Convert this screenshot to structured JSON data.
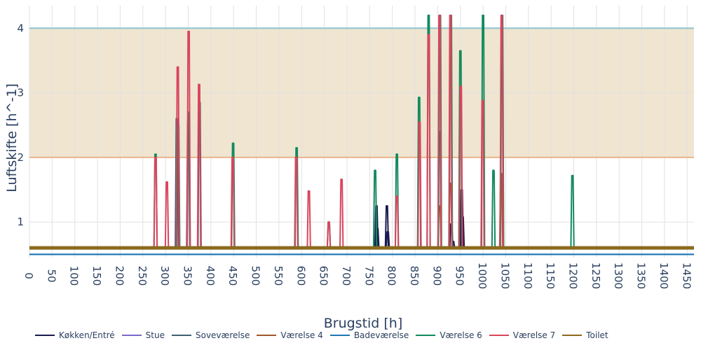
{
  "chart_data": {
    "type": "line",
    "title": "",
    "xlabel": "Brugstid [h]",
    "ylabel": "Luftskifte [h^-1]",
    "xlim": [
      0,
      1465
    ],
    "ylim": [
      0.45,
      4.35
    ],
    "x_ticks": [
      0,
      50,
      100,
      150,
      200,
      250,
      300,
      350,
      400,
      450,
      500,
      550,
      600,
      650,
      700,
      750,
      800,
      850,
      900,
      950,
      1000,
      1050,
      1100,
      1150,
      1200,
      1250,
      1300,
      1350,
      1400,
      1450
    ],
    "x_tick_labels": [
      "0",
      "50",
      "100",
      "150",
      "200",
      "250",
      "300",
      "350",
      "400",
      "450",
      "500",
      "550",
      "600",
      "650",
      "700",
      "750",
      "800",
      "850",
      "900",
      "950",
      "1000",
      "1050",
      "1100",
      "1150",
      "1200",
      "1250",
      "1300",
      "1350",
      "1400",
      "1450"
    ],
    "y_ticks": [
      1,
      2,
      3,
      4
    ],
    "y_tick_labels": [
      "1",
      "2",
      "3",
      "4"
    ],
    "grid": true,
    "legend_position": "bottom",
    "reference_band": {
      "from": 2,
      "to": 4,
      "color": "#efe5d1"
    },
    "reference_lines": [
      {
        "y": 4,
        "color": "#8ec5cf"
      },
      {
        "y": 2,
        "color": "#ebb489"
      },
      {
        "y": 0.5,
        "color": "#1f77b4"
      }
    ],
    "baseline": 0.6,
    "series": [
      {
        "name": "Køkken/Entré",
        "color": "#1b1b50",
        "peaks": [
          [
            765,
            1.25
          ],
          [
            767,
            0.9
          ],
          [
            788,
            1.25
          ],
          [
            790,
            0.85
          ],
          [
            930,
            0.97
          ],
          [
            934,
            0.7
          ],
          [
            953,
            1.5
          ],
          [
            955,
            1.08
          ]
        ]
      },
      {
        "name": "Stue",
        "color": "#7b68c8",
        "peaks": []
      },
      {
        "name": "Soveværelse",
        "color": "#3f5e72",
        "peaks": [
          [
            325,
            2.6
          ],
          [
            350,
            2.55
          ],
          [
            375,
            2.85
          ],
          [
            904,
            2.4
          ]
        ]
      },
      {
        "name": "Værelse 4",
        "color": "#a0562a",
        "peaks": [
          [
            928,
            1.6
          ],
          [
            904,
            1.25
          ],
          [
            1040,
            1.75
          ]
        ]
      },
      {
        "name": "Badeværelse",
        "color": "#1f77b4",
        "peaks": []
      },
      {
        "name": "Værelse 6",
        "color": "#138a5e",
        "peaks": [
          [
            278,
            2.05
          ],
          [
            328,
            2.5
          ],
          [
            351,
            2.7
          ],
          [
            449,
            2.22
          ],
          [
            589,
            2.15
          ],
          [
            660,
            1.0
          ],
          [
            762,
            1.8
          ],
          [
            810,
            2.05
          ],
          [
            859,
            2.93
          ],
          [
            880,
            4.2
          ],
          [
            905,
            4.2
          ],
          [
            929,
            4.2
          ],
          [
            950,
            3.65
          ],
          [
            1000,
            4.2
          ],
          [
            1023,
            1.8
          ],
          [
            1042,
            4.2
          ],
          [
            1197,
            1.72
          ]
        ]
      },
      {
        "name": "Værelse 7",
        "color": "#d9455d",
        "peaks": [
          [
            278,
            2.0
          ],
          [
            303,
            1.62
          ],
          [
            327,
            3.4
          ],
          [
            351,
            3.95
          ],
          [
            374,
            3.13
          ],
          [
            448,
            2.0
          ],
          [
            588,
            2.0
          ],
          [
            616,
            1.48
          ],
          [
            660,
            1.0
          ],
          [
            688,
            1.66
          ],
          [
            810,
            1.4
          ],
          [
            860,
            2.55
          ],
          [
            880,
            3.9
          ],
          [
            904,
            4.2
          ],
          [
            928,
            4.2
          ],
          [
            951,
            3.1
          ],
          [
            999,
            2.88
          ],
          [
            1041,
            4.2
          ]
        ]
      },
      {
        "name": "Toilet",
        "color": "#8b6a1e",
        "peaks": []
      }
    ]
  }
}
